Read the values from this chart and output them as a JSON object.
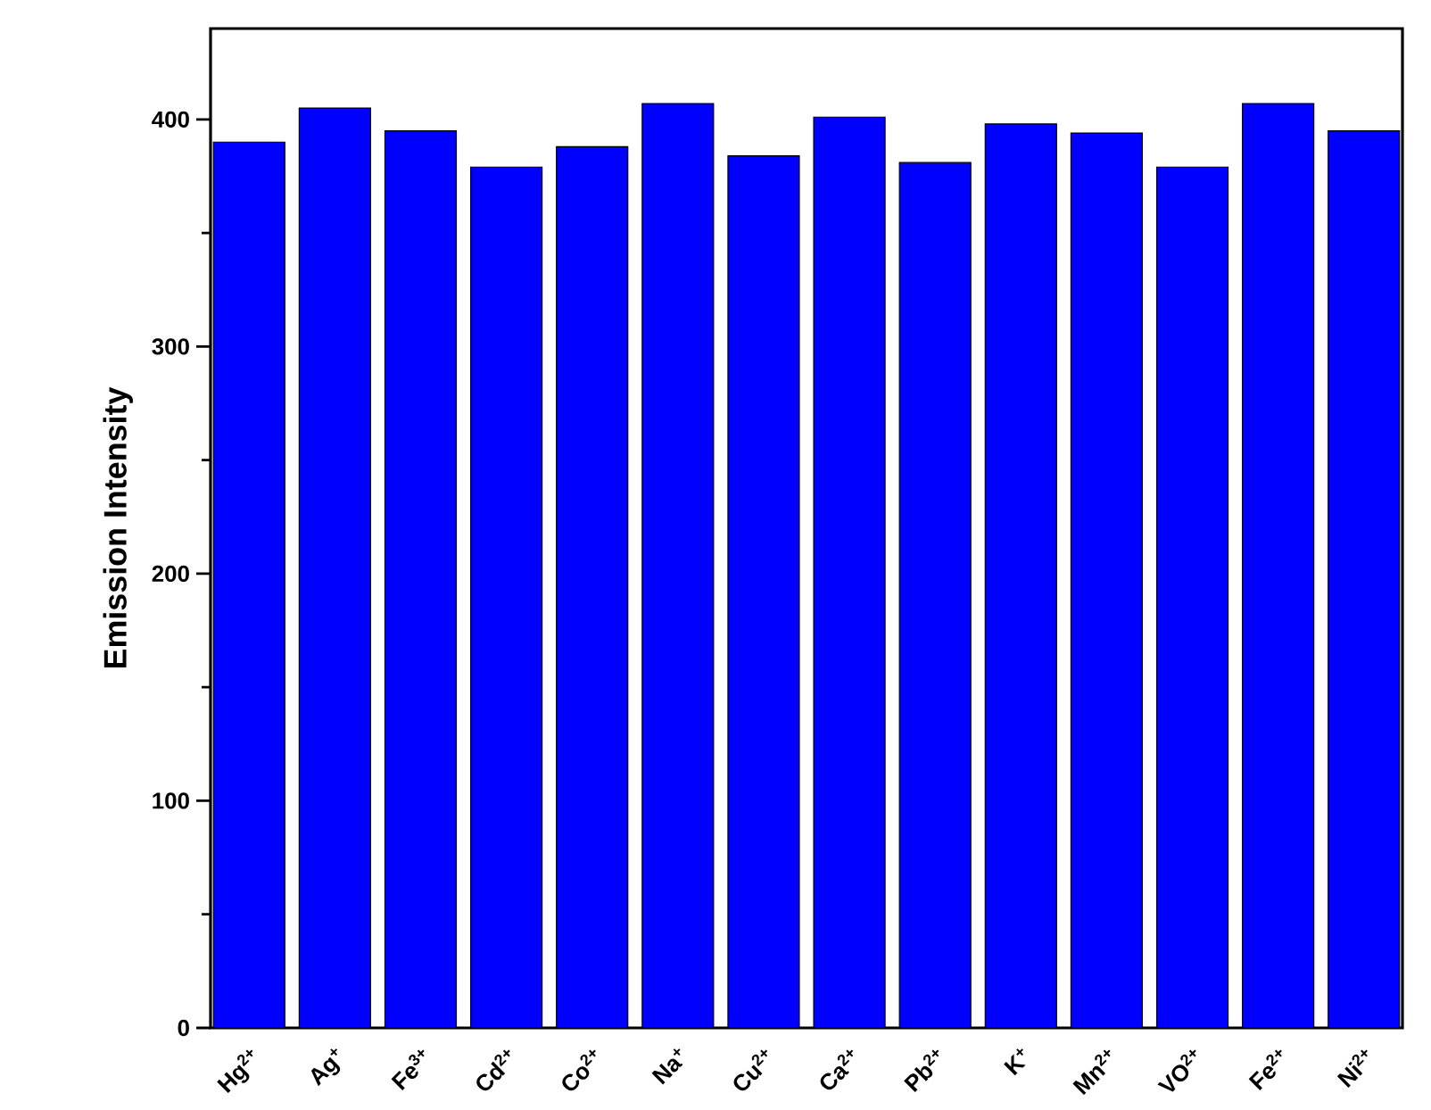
{
  "chart_data": {
    "type": "bar",
    "ylabel": "Emission Intensity",
    "categories": [
      "Hg$^{2+}$",
      "Ag$^{+}$",
      "Fe$^{3+}$",
      "Cd$^{2+}$",
      "Co$^{2+}$",
      "Na$^{+}$",
      "Cu$^{2+}$",
      "Ca$^{2+}$",
      "Pb$^{2+}$",
      "K$^{+}$",
      "Mn$^{2+}$",
      "VO$^{2+}$",
      "Fe$^{2+}$",
      "Ni$^{2+}$"
    ],
    "values": [
      390,
      405,
      395,
      379,
      388,
      407,
      384,
      401,
      381,
      398,
      394,
      379,
      407,
      395
    ],
    "color": "#0000ff",
    "ylim": [
      0,
      440
    ],
    "yticks": [
      0,
      100,
      200,
      300,
      400
    ]
  }
}
